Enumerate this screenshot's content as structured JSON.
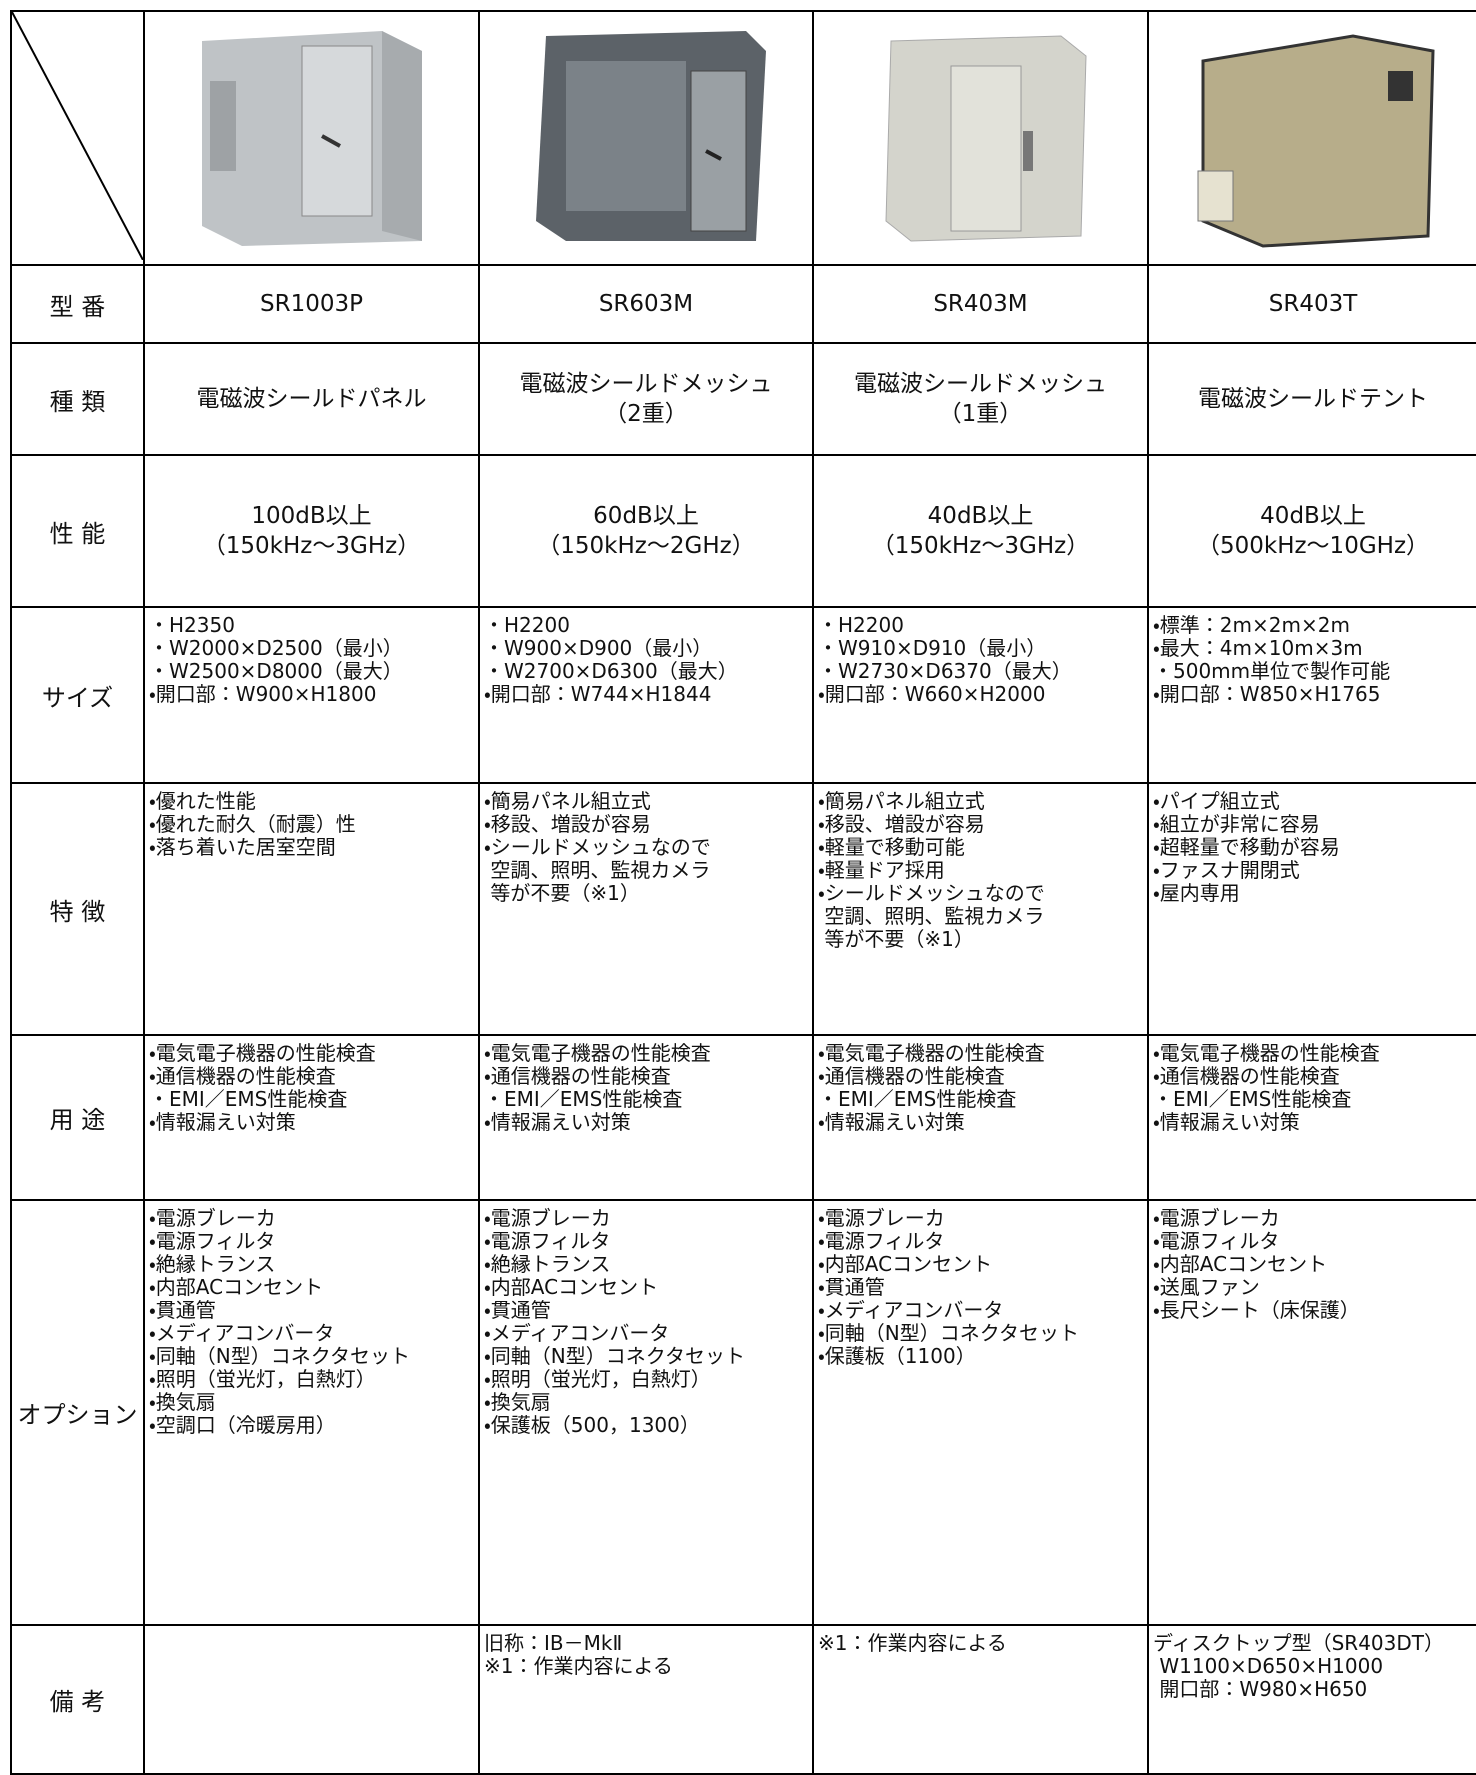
{
  "table": {
    "rows": [
      {
        "header": "型 番",
        "cells": [
          [
            "SR1003P"
          ],
          [
            "SR603M"
          ],
          [
            "SR403M"
          ],
          [
            "SR403T"
          ]
        ]
      },
      {
        "header": "種 類",
        "cells": [
          [
            "電磁波シールドパネル"
          ],
          [
            "電磁波シールドメッシュ",
            "（2重）"
          ],
          [
            "電磁波シールドメッシュ",
            "（1重）"
          ],
          [
            "電磁波シールドテント"
          ]
        ]
      },
      {
        "header": "性 能",
        "cells": [
          [
            "100dB以上",
            "（150kHz～3GHz）"
          ],
          [
            "60dB以上",
            "（150kHz～2GHz）"
          ],
          [
            "40dB以上",
            "（150kHz～3GHz）"
          ],
          [
            "40dB以上",
            "（500kHz～10GHz）"
          ]
        ]
      },
      {
        "header": "サイズ",
        "cells": [
          [
            "・H2350",
            "・W2000×D2500（最小）",
            "・W2500×D8000（最大）",
            "・開口部：W900×H1800"
          ],
          [
            "・H2200",
            "・W900×D900（最小）",
            "・W2700×D6300（最大）",
            "・開口部：W744×H1844"
          ],
          [
            "・H2200",
            "・W910×D910（最小）",
            "・W2730×D6370（最大）",
            "・開口部：W660×H2000"
          ],
          [
            "・標準：2m×2m×2m",
            "・最大：4m×10m×3m",
            "・500mm単位で製作可能",
            "・開口部：W850×H1765"
          ]
        ]
      },
      {
        "header": "特 徴",
        "cells": [
          [
            "・優れた性能",
            "・優れた耐久（耐震）性",
            "・落ち着いた居室空間"
          ],
          [
            "・簡易パネル組立式",
            "・移設、増設が容易",
            "・シールドメッシュなので",
            " 空調、照明、監視カメラ",
            " 等が不要（※1）"
          ],
          [
            "・簡易パネル組立式",
            "・移設、増設が容易",
            "・軽量で移動可能",
            "・軽量ドア採用",
            "・シールドメッシュなので",
            " 空調、照明、監視カメラ",
            " 等が不要（※1）"
          ],
          [
            "・パイプ組立式",
            "・組立が非常に容易",
            "・超軽量で移動が容易",
            "・ファスナ開閉式",
            "・屋内専用"
          ]
        ]
      },
      {
        "header": "用 途",
        "cells": [
          [
            "・電気電子機器の性能検査",
            "・通信機器の性能検査",
            "・EMI／EMS性能検査",
            "・情報漏えい対策"
          ],
          [
            "・電気電子機器の性能検査",
            "・通信機器の性能検査",
            "・EMI／EMS性能検査",
            "・情報漏えい対策"
          ],
          [
            "・電気電子機器の性能検査",
            "・通信機器の性能検査",
            "・EMI／EMS性能検査",
            "・情報漏えい対策"
          ],
          [
            "・電気電子機器の性能検査",
            "・通信機器の性能検査",
            "・EMI／EMS性能検査",
            "・情報漏えい対策"
          ]
        ]
      },
      {
        "header": "オプション",
        "cells": [
          [
            "・電源ブレーカ",
            "・電源フィルタ",
            "・絶縁トランス",
            "・内部ACコンセント",
            "・貫通管",
            "・メディアコンバータ",
            "・同軸（N型）コネクタセット",
            "・照明（蛍光灯，白熱灯）",
            "・換気扇",
            "・空調口（冷暖房用）"
          ],
          [
            "・電源ブレーカ",
            "・電源フィルタ",
            "・絶縁トランス",
            "・内部ACコンセント",
            "・貫通管",
            "・メディアコンバータ",
            "・同軸（N型）コネクタセット",
            "・照明（蛍光灯，白熱灯）",
            "・換気扇",
            "・保護板（500，1300）"
          ],
          [
            "・電源ブレーカ",
            "・電源フィルタ",
            "・内部ACコンセント",
            "・貫通管",
            "・メディアコンバータ",
            "・同軸（N型）コネクタセット",
            "・保護板（1100）"
          ],
          [
            "・電源ブレーカ",
            "・電源フィルタ",
            "・内部ACコンセント",
            "・送風ファン",
            "・長尺シート（床保護）"
          ]
        ]
      },
      {
        "header": "備 考",
        "cells": [
          [],
          [
            "旧称：IB－MkⅡ",
            "※1：作業内容による"
          ],
          [
            "※1：作業内容による"
          ],
          [
            "ディスクトップ型（SR403DT）",
            " W1100×D650×H1000",
            " 開口部：W980×H650"
          ]
        ]
      }
    ]
  }
}
